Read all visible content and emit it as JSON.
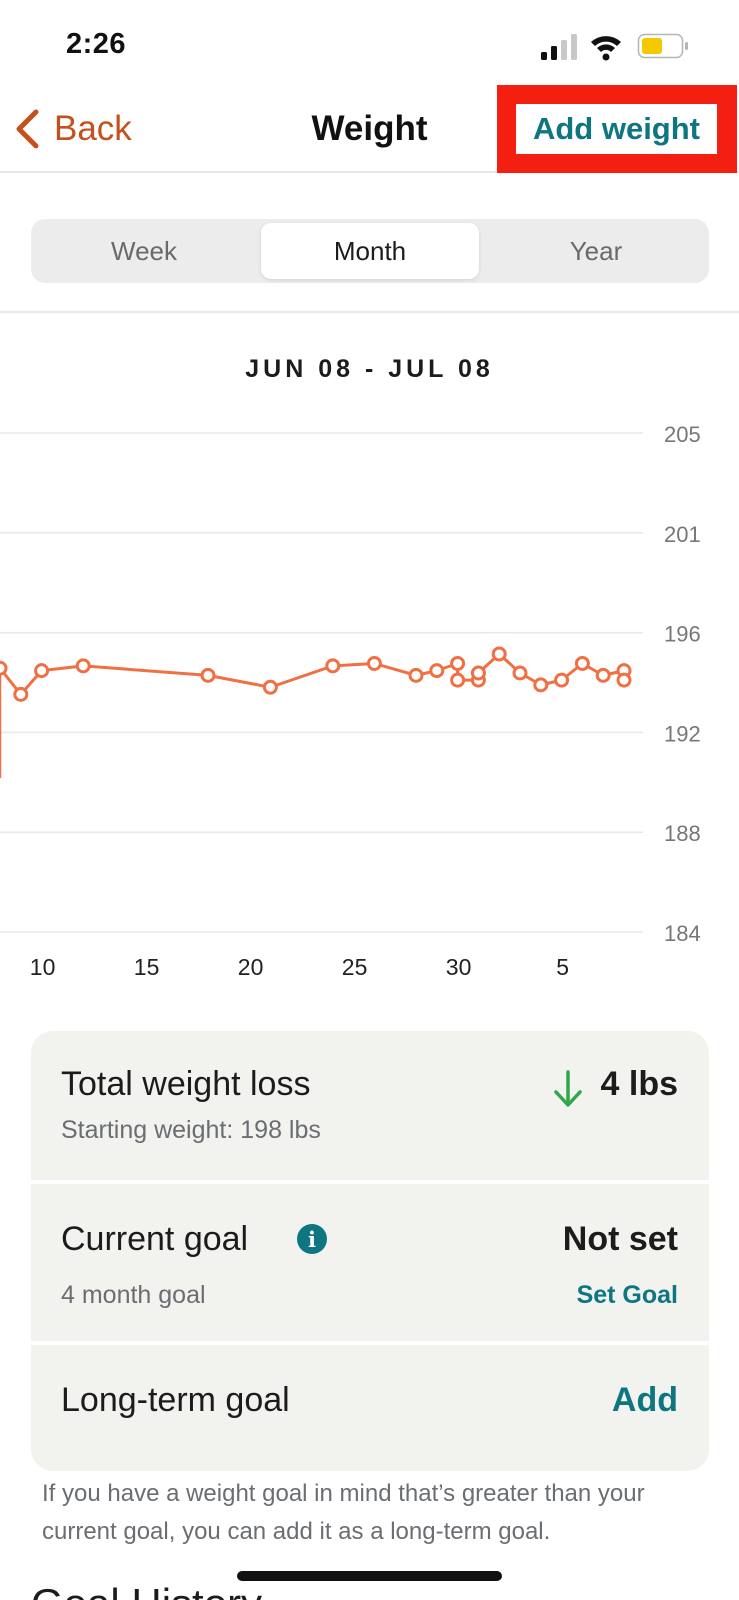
{
  "status": {
    "time": "2:26"
  },
  "nav": {
    "back_label": "Back",
    "title": "Weight",
    "add_label": "Add weight"
  },
  "tabs": [
    {
      "label": "Week",
      "active": false
    },
    {
      "label": "Month",
      "active": true
    },
    {
      "label": "Year",
      "active": false
    }
  ],
  "chart_data": {
    "type": "line",
    "title": "JUN 08 - JUL 08",
    "y_ticks": [
      "205",
      "201",
      "196",
      "192",
      "188",
      "184"
    ],
    "x_ticks": [
      "10",
      "15",
      "20",
      "25",
      "30",
      "5"
    ],
    "ylim": [
      184,
      205
    ],
    "series": [
      {
        "color": "#f07044",
        "points": [
          {
            "x": "Jun 8",
            "y": 195.1
          },
          {
            "x": "Jun 9",
            "y": 194.0
          },
          {
            "x": "Jun 10",
            "y": 195.0
          },
          {
            "x": "Jun 12",
            "y": 195.2
          },
          {
            "x": "Jun 18",
            "y": 194.8
          },
          {
            "x": "Jun 21",
            "y": 194.3
          },
          {
            "x": "Jun 24",
            "y": 195.2
          },
          {
            "x": "Jun 26",
            "y": 195.3
          },
          {
            "x": "Jun 28",
            "y": 194.8
          },
          {
            "x": "Jun 29",
            "y": 195.0
          },
          {
            "x": "Jun 30",
            "y": 195.3
          },
          {
            "x": "Jun 30",
            "y": 194.6
          },
          {
            "x": "Jul 1",
            "y": 194.6
          },
          {
            "x": "Jul 1",
            "y": 194.9
          },
          {
            "x": "Jul 2",
            "y": 195.7
          },
          {
            "x": "Jul 3",
            "y": 194.9
          },
          {
            "x": "Jul 4",
            "y": 194.4
          },
          {
            "x": "Jul 5",
            "y": 194.6
          },
          {
            "x": "Jul 6",
            "y": 195.3
          },
          {
            "x": "Jul 7",
            "y": 194.8
          },
          {
            "x": "Jul 8",
            "y": 195.0
          },
          {
            "x": "Jul 8",
            "y": 194.6
          }
        ]
      }
    ]
  },
  "summary": {
    "total_loss": {
      "title": "Total weight loss",
      "value": "4 lbs",
      "sub": "Starting weight: 198 lbs",
      "arrow_color": "#2ea84a"
    },
    "current_goal": {
      "title": "Current goal",
      "value": "Not set",
      "sub": "4 month goal",
      "action": "Set Goal"
    },
    "long_term": {
      "title": "Long-term goal",
      "action": "Add"
    }
  },
  "helper_text": "If you have a weight goal in mind that’s greater than your current goal, you can add it as a long-term goal.",
  "goal_history_title": "Goal History",
  "colors": {
    "accent_teal": "#0d7680",
    "back_orange": "#c4501e",
    "line_orange": "#f07044",
    "highlight_red": "#f41f10"
  }
}
